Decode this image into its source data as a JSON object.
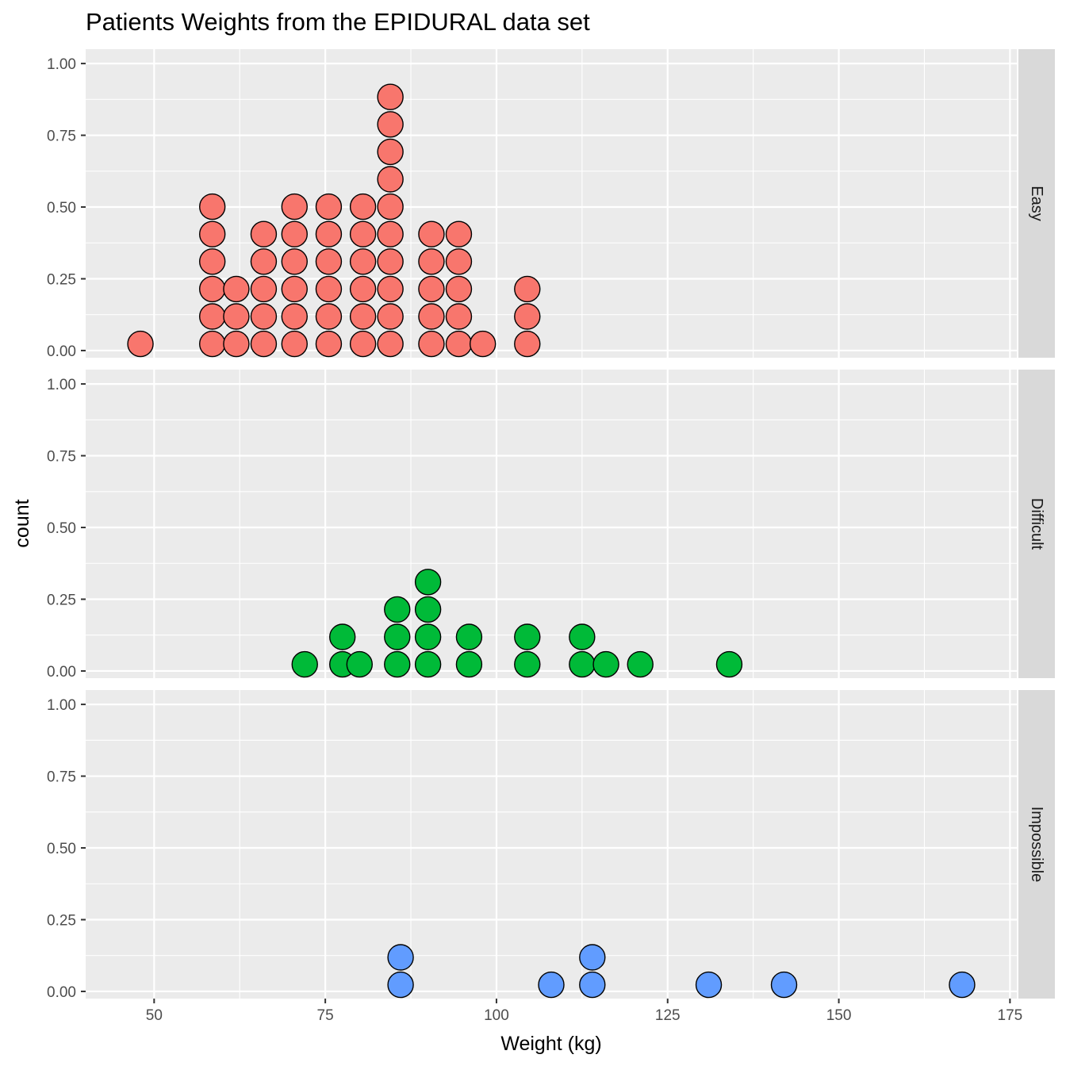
{
  "chart_data": {
    "type": "dotplot",
    "title": "Patients Weights from the EPIDURAL data set",
    "xlabel": "Weight (kg)",
    "ylabel": "count",
    "xlim": [
      40,
      176
    ],
    "ylim": [
      -0.025,
      1.05
    ],
    "x_ticks": [
      50,
      75,
      100,
      125,
      150,
      175
    ],
    "y_ticks": [
      0.0,
      0.25,
      0.5,
      0.75,
      1.0
    ],
    "y_tick_labels": [
      "0.00",
      "0.25",
      "0.50",
      "0.75",
      "1.00"
    ],
    "facet_by": "Ease",
    "grid": true,
    "panels": [
      {
        "name": "Easy",
        "color": "#F8766D",
        "stacks": [
          {
            "x": 48,
            "n": 1
          },
          {
            "x": 58.5,
            "n": 6
          },
          {
            "x": 62,
            "n": 3
          },
          {
            "x": 66,
            "n": 5
          },
          {
            "x": 70.5,
            "n": 6
          },
          {
            "x": 75.5,
            "n": 6
          },
          {
            "x": 80.5,
            "n": 6
          },
          {
            "x": 84.5,
            "n": 10
          },
          {
            "x": 90.5,
            "n": 5
          },
          {
            "x": 94.5,
            "n": 5
          },
          {
            "x": 98,
            "n": 1
          },
          {
            "x": 104.5,
            "n": 3
          }
        ]
      },
      {
        "name": "Difficult",
        "color": "#00BA38",
        "stacks": [
          {
            "x": 72,
            "n": 1
          },
          {
            "x": 77.5,
            "n": 2
          },
          {
            "x": 80,
            "n": 1
          },
          {
            "x": 85.5,
            "n": 3
          },
          {
            "x": 90,
            "n": 4
          },
          {
            "x": 96,
            "n": 2
          },
          {
            "x": 104.5,
            "n": 2
          },
          {
            "x": 112.5,
            "n": 2
          },
          {
            "x": 116,
            "n": 1
          },
          {
            "x": 121,
            "n": 1
          },
          {
            "x": 134,
            "n": 1
          }
        ]
      },
      {
        "name": "Impossible",
        "color": "#619CFF",
        "stacks": [
          {
            "x": 86,
            "n": 2
          },
          {
            "x": 108,
            "n": 1
          },
          {
            "x": 114,
            "n": 2
          },
          {
            "x": 131,
            "n": 1
          },
          {
            "x": 142,
            "n": 1
          },
          {
            "x": 168,
            "n": 1
          }
        ]
      }
    ]
  }
}
